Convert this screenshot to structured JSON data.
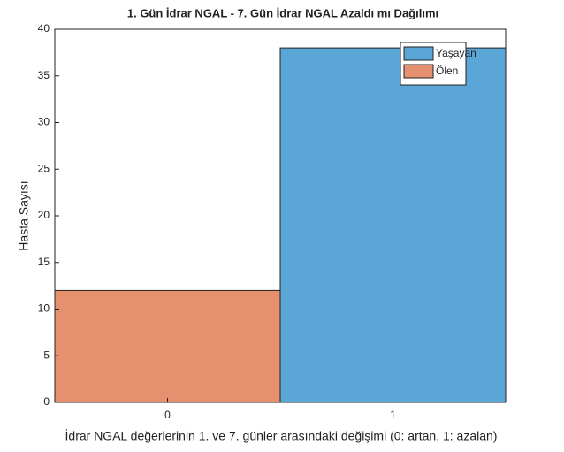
{
  "chart_data": {
    "type": "bar",
    "title": "1. Gün İdrar NGAL - 7. Gün İdrar NGAL Azaldı mı Dağılımı",
    "xlabel": "İdrar NGAL değerlerinin 1. ve 7. günler arasındaki değişimi (0: artan, 1: azalan)",
    "ylabel": "Hasta Sayısı",
    "categories": [
      "0",
      "1"
    ],
    "series": [
      {
        "name": "Yaşayan",
        "color": "#5aa7d7",
        "values": [
          0,
          38
        ]
      },
      {
        "name": "Ölen",
        "color": "#e5906e",
        "values": [
          12,
          0
        ]
      }
    ],
    "ylim": [
      0,
      40
    ],
    "yticks": [
      0,
      5,
      10,
      15,
      20,
      25,
      30,
      35,
      40
    ],
    "legend": "northeast",
    "grid": false
  }
}
